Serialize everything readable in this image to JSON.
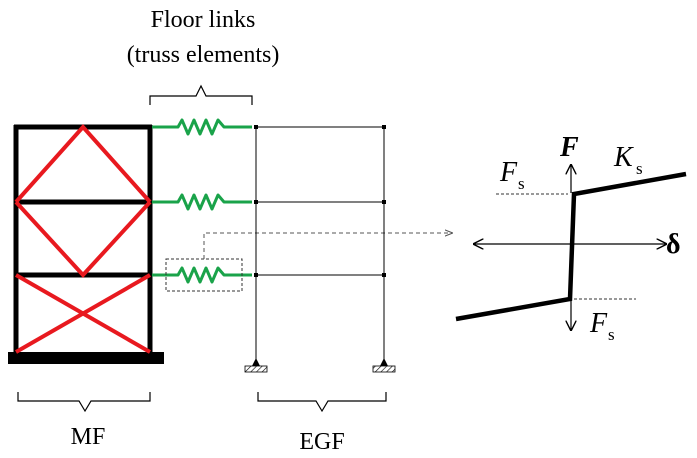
{
  "labels": {
    "floor_links_line1": "Floor links",
    "floor_links_line2": "(truss elements)",
    "mf": "MF",
    "egf": "EGF"
  },
  "plot": {
    "force_axis": "F",
    "disp_axis": "δ",
    "fs_top_main": "F",
    "fs_top_sub": "s",
    "ks_main": "K",
    "ks_sub": "s",
    "fs_bottom_main": "F",
    "fs_bottom_sub": "s"
  },
  "colors": {
    "frame": "#000000",
    "brace": "#e8191f",
    "spring": "#1aa34a",
    "leader": "#555555"
  }
}
